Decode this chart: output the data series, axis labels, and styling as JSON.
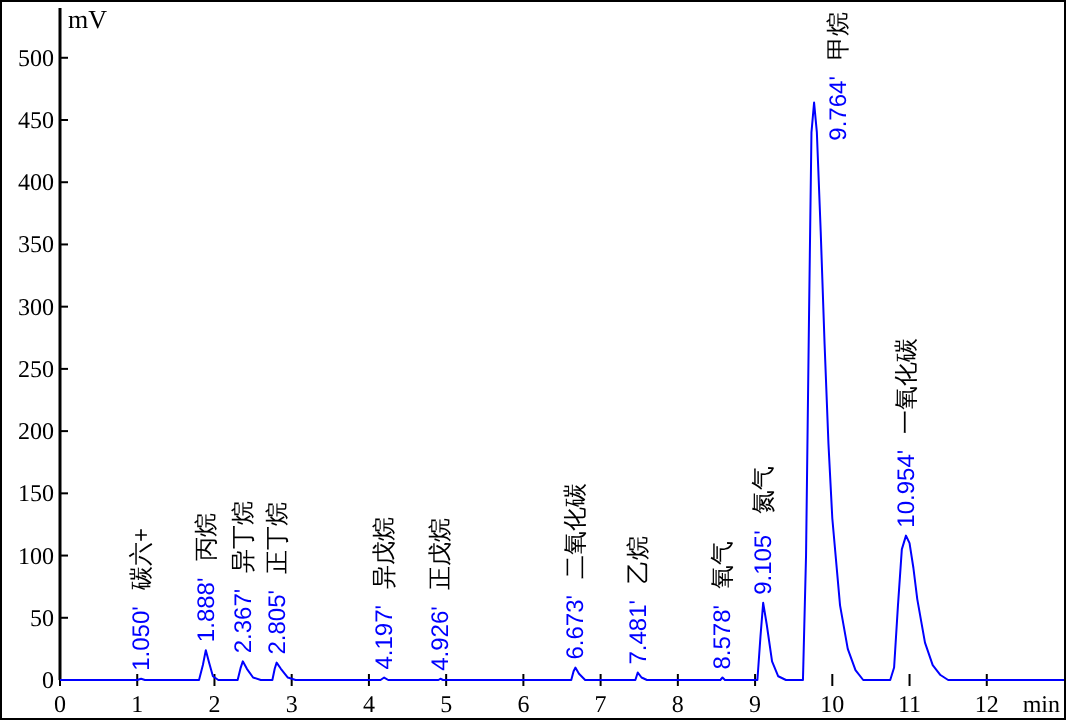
{
  "chart_data": {
    "type": "line",
    "xlabel": "min",
    "ylabel": "mV",
    "xlim": [
      0,
      13
    ],
    "ylim": [
      0,
      540
    ],
    "xticks": [
      0,
      1,
      2,
      3,
      4,
      5,
      6,
      7,
      8,
      9,
      10,
      11,
      12
    ],
    "yticks": [
      0,
      50,
      100,
      150,
      200,
      250,
      300,
      350,
      400,
      450,
      500
    ],
    "grid": false,
    "marker": "none",
    "line_style": "solid",
    "series": [
      {
        "color": "#0000ff",
        "x": [
          0,
          1.0,
          1.05,
          1.1,
          1.8,
          1.85,
          1.888,
          1.93,
          1.98,
          2.05,
          2.3,
          2.34,
          2.367,
          2.42,
          2.5,
          2.6,
          2.75,
          2.78,
          2.805,
          2.86,
          2.95,
          3.05,
          4.15,
          4.197,
          4.25,
          4.9,
          4.926,
          4.96,
          6.62,
          6.65,
          6.673,
          6.72,
          6.8,
          7.45,
          7.481,
          7.53,
          7.6,
          8.55,
          8.578,
          8.61,
          9.03,
          9.07,
          9.105,
          9.15,
          9.22,
          9.3,
          9.4,
          9.62,
          9.66,
          9.7,
          9.73,
          9.764,
          9.8,
          9.85,
          9.9,
          9.95,
          10.0,
          10.1,
          10.2,
          10.3,
          10.4,
          10.75,
          10.8,
          10.85,
          10.9,
          10.954,
          11.0,
          11.05,
          11.1,
          11.2,
          11.3,
          11.4,
          11.5,
          13
        ],
        "values": [
          0,
          0,
          1,
          0,
          0,
          12,
          24,
          14,
          3,
          0,
          0,
          10,
          15,
          9,
          2,
          0,
          0,
          9,
          14,
          9,
          2,
          0,
          0,
          2,
          0,
          0,
          1,
          0,
          0,
          7,
          10,
          5,
          0,
          0,
          6,
          2,
          0,
          0,
          2,
          0,
          0,
          35,
          62,
          45,
          15,
          3,
          0,
          0,
          100,
          300,
          440,
          464,
          440,
          360,
          270,
          190,
          130,
          60,
          25,
          8,
          0,
          0,
          10,
          60,
          105,
          116,
          110,
          90,
          65,
          30,
          12,
          4,
          0,
          0
        ]
      }
    ],
    "annotations": [
      {
        "text": "1.050'",
        "x": 1.05,
        "y": 1
      },
      "碳六+",
      {
        "text": "1.888'",
        "x": 1.888,
        "y": 24
      },
      "丙烷",
      {
        "text": "2.367'",
        "x": 2.367,
        "y": 15
      },
      "异丁烷",
      {
        "text": "2.805'",
        "x": 2.805,
        "y": 14
      },
      "正丁烷",
      {
        "text": "4.197'",
        "x": 4.197,
        "y": 2
      },
      "异戊烷",
      {
        "text": "4.926'",
        "x": 4.926,
        "y": 1
      },
      "正戊烷",
      {
        "text": "6.673'",
        "x": 6.673,
        "y": 10
      },
      "二氧化碳",
      {
        "text": "7.481'",
        "x": 7.481,
        "y": 6
      },
      "乙烷",
      {
        "text": "8.578'",
        "x": 8.578,
        "y": 2
      },
      "氧气",
      {
        "text": "9.105'",
        "x": 9.105,
        "y": 62
      },
      "氮气",
      {
        "text": "9.764'",
        "x": 9.764,
        "y": 464
      },
      "甲烷",
      {
        "text": "10.954'",
        "x": 10.954,
        "y": 116
      },
      "一氧化碳"
    ]
  }
}
